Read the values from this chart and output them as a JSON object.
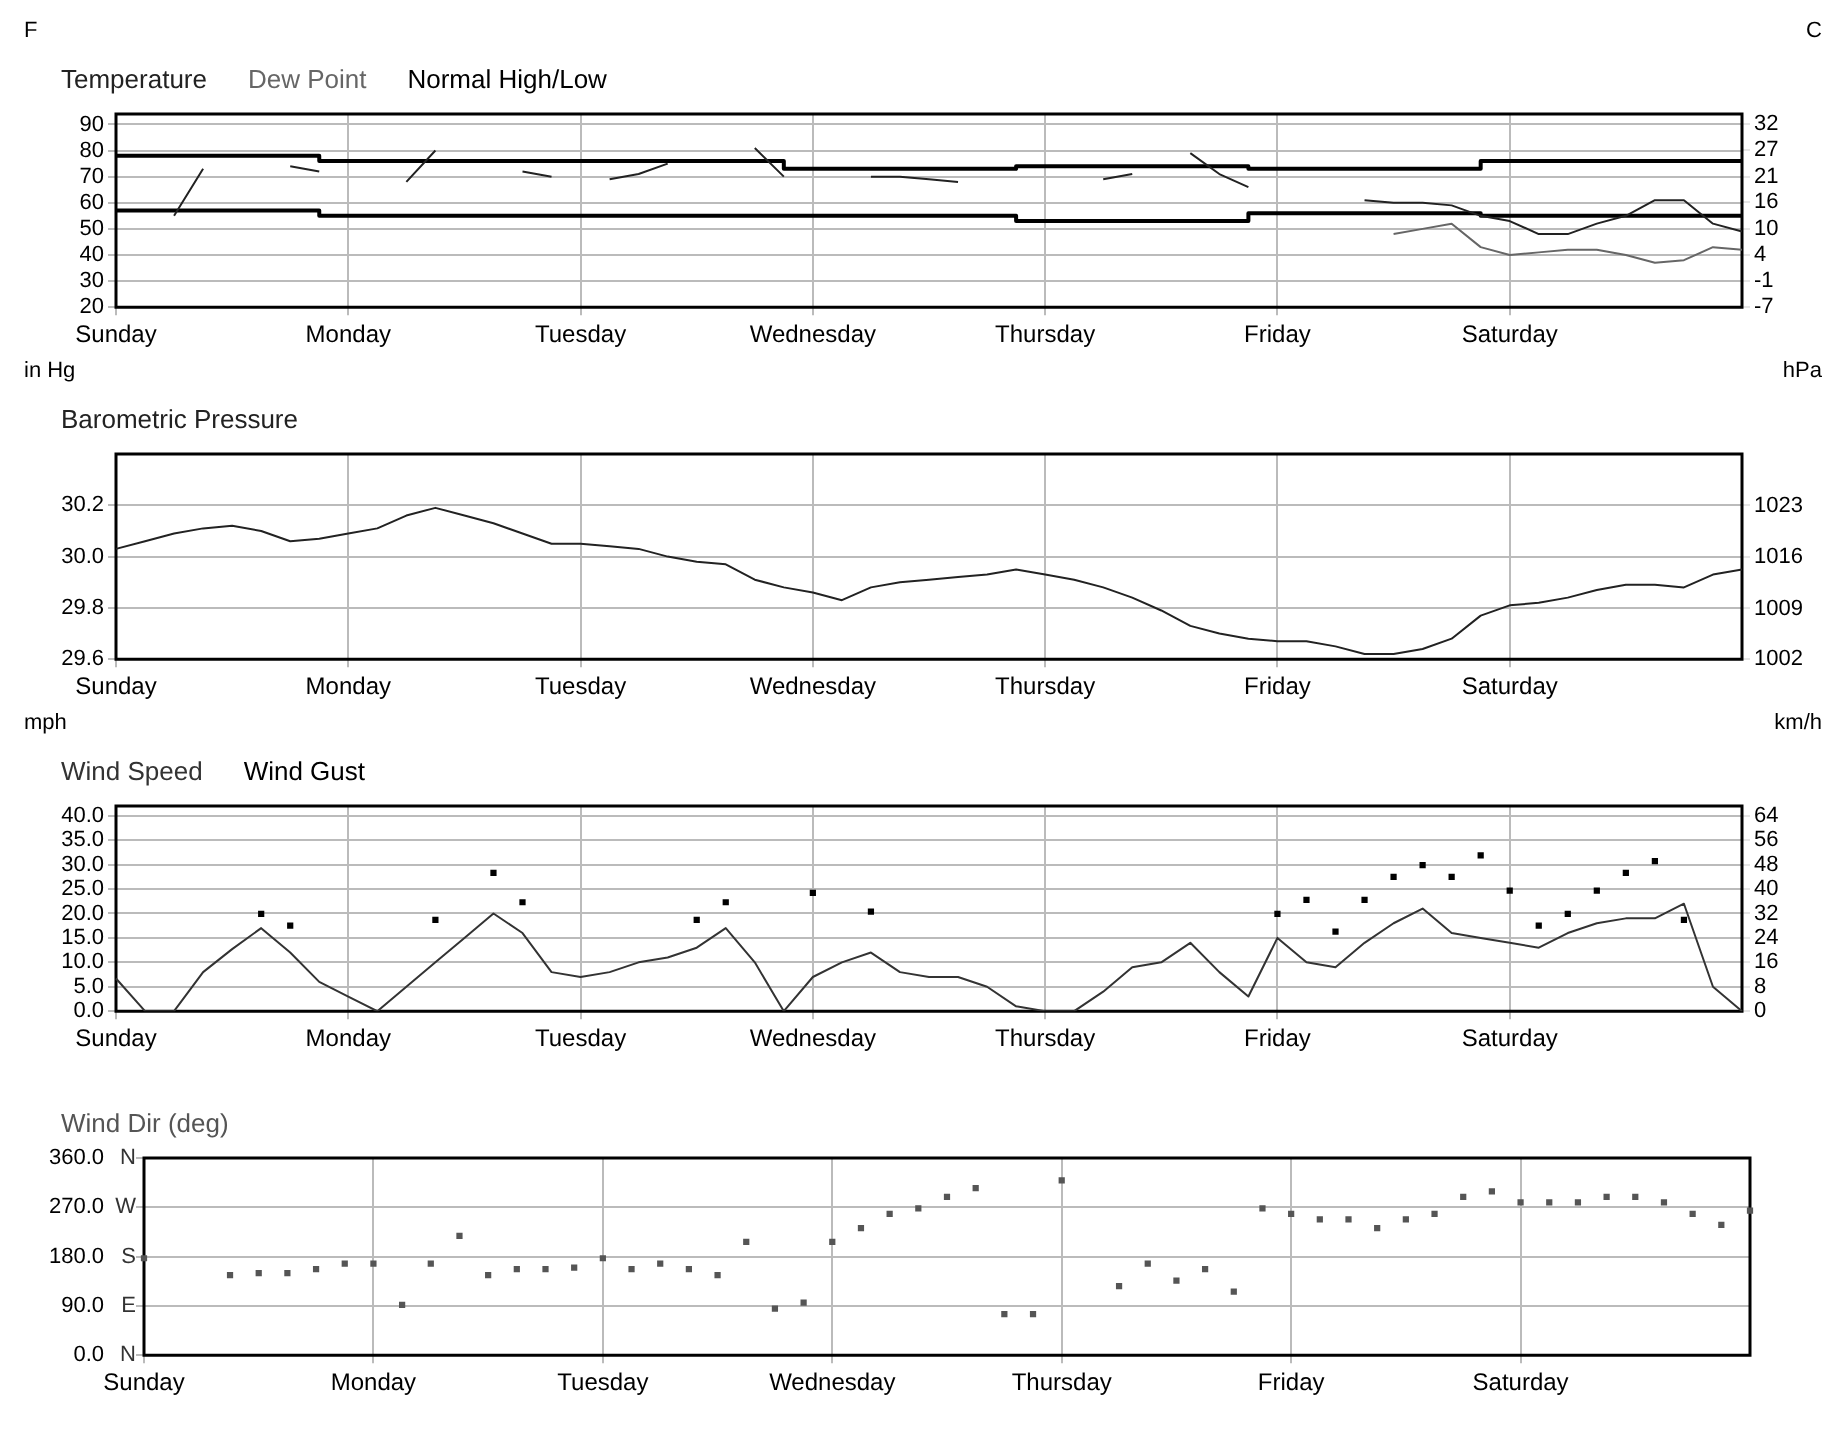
{
  "chart_data": [
    {
      "type": "line",
      "ylabel": "F",
      "y2label": "C",
      "categories": [
        "Sunday",
        null,
        null,
        null,
        null,
        null,
        null,
        null,
        "Monday",
        null,
        null,
        null,
        null,
        null,
        null,
        null,
        "Tuesday",
        null,
        null,
        null,
        null,
        null,
        null,
        null,
        "Wednesday",
        null,
        null,
        null,
        null,
        null,
        null,
        null,
        "Thursday",
        null,
        null,
        null,
        null,
        null,
        null,
        null,
        "Friday",
        null,
        null,
        null,
        null,
        null,
        null,
        null,
        "Saturday",
        null,
        null,
        null,
        null,
        null,
        null,
        null,
        null
      ],
      "ylim": [
        20,
        94
      ],
      "yticks": [
        20,
        30,
        40,
        50,
        60,
        70,
        80,
        90
      ],
      "y2lim": [
        -6.7,
        34.4
      ],
      "y2ticks": [
        {
          "value": -6.7,
          "label": "-7"
        },
        {
          "value": -1.1,
          "label": "-1"
        },
        {
          "value": 4.4,
          "label": "4"
        },
        10,
        {
          "value": 15.6,
          "label": "16"
        },
        {
          "value": 21.1,
          "label": "21"
        },
        {
          "value": 26.7,
          "label": "27"
        },
        {
          "value": 32.2,
          "label": "32"
        }
      ],
      "grid": true,
      "legend": "top left",
      "series": [
        {
          "name": "Temperature",
          "color": "#222222",
          "values": [
            null,
            null,
            55,
            73,
            null,
            null,
            74,
            72,
            null,
            null,
            68,
            80,
            null,
            null,
            72,
            70,
            null,
            69,
            71,
            75,
            null,
            null,
            81,
            70,
            null,
            null,
            70,
            70,
            69,
            68,
            null,
            null,
            null,
            null,
            69,
            71,
            null,
            79,
            71,
            66,
            null,
            null,
            null,
            61,
            60,
            60,
            59,
            55,
            53,
            48,
            48,
            52,
            55,
            61,
            61,
            52,
            49
          ]
        },
        {
          "name": "Dew Point",
          "color": "#666666",
          "values": [
            null,
            null,
            null,
            null,
            null,
            null,
            null,
            null,
            null,
            null,
            null,
            null,
            null,
            null,
            null,
            null,
            null,
            null,
            null,
            null,
            null,
            null,
            null,
            null,
            null,
            null,
            null,
            null,
            null,
            null,
            null,
            null,
            null,
            null,
            null,
            null,
            null,
            null,
            null,
            null,
            null,
            null,
            null,
            null,
            48,
            50,
            52,
            43,
            40,
            41,
            42,
            42,
            40,
            37,
            38,
            43,
            42
          ]
        },
        {
          "name": "Normal High/Low",
          "type": "step",
          "color": "#000000",
          "values": [
            78,
            78,
            78,
            78,
            78,
            78,
            78,
            78,
            76,
            76,
            76,
            76,
            76,
            76,
            76,
            76,
            76,
            76,
            76,
            76,
            76,
            76,
            76,
            76,
            73,
            73,
            73,
            73,
            73,
            73,
            73,
            73,
            74,
            74,
            74,
            74,
            74,
            74,
            74,
            74,
            73,
            73,
            73,
            73,
            73,
            73,
            73,
            73,
            76,
            76,
            76,
            76,
            76,
            76,
            76,
            76,
            76
          ]
        },
        {
          "type": "step",
          "color": "#000000",
          "values": [
            57,
            57,
            57,
            57,
            57,
            57,
            57,
            57,
            55,
            55,
            55,
            55,
            55,
            55,
            55,
            55,
            55,
            55,
            55,
            55,
            55,
            55,
            55,
            55,
            55,
            55,
            55,
            55,
            55,
            55,
            55,
            55,
            53,
            53,
            53,
            53,
            53,
            53,
            53,
            53,
            56,
            56,
            56,
            56,
            56,
            56,
            56,
            56,
            55,
            55,
            55,
            55,
            55,
            55,
            55,
            55,
            55
          ]
        }
      ]
    },
    {
      "type": "line",
      "ylabel": "in Hg",
      "y2label": "hPa",
      "categories": [
        "Sunday",
        null,
        null,
        null,
        null,
        null,
        null,
        null,
        "Monday",
        null,
        null,
        null,
        null,
        null,
        null,
        null,
        "Tuesday",
        null,
        null,
        null,
        null,
        null,
        null,
        null,
        "Wednesday",
        null,
        null,
        null,
        null,
        null,
        null,
        null,
        "Thursday",
        null,
        null,
        null,
        null,
        null,
        null,
        null,
        "Friday",
        null,
        null,
        null,
        null,
        null,
        null,
        null,
        "Saturday",
        null,
        null,
        null,
        null,
        null,
        null,
        null,
        null
      ],
      "ylim": [
        29.6,
        30.4
      ],
      "yticks": [
        29.6,
        29.8,
        {
          "value": 30.0,
          "label": "30.0"
        },
        30.2
      ],
      "y2lim": [
        1002.4,
        1029.5
      ],
      "y2ticks": [
        {
          "value": 1002.4,
          "label": "1002"
        },
        {
          "value": 1009.1,
          "label": "1009"
        },
        {
          "value": 1015.9,
          "label": "1016"
        },
        {
          "value": 1022.7,
          "label": "1023"
        }
      ],
      "grid": true,
      "legend": "top left",
      "series": [
        {
          "name": "Barometric Pressure",
          "color": "#222222",
          "values": [
            30.03,
            30.06,
            30.09,
            30.11,
            30.12,
            30.1,
            30.06,
            30.07,
            30.09,
            30.11,
            30.16,
            30.19,
            30.16,
            30.13,
            30.09,
            30.05,
            30.05,
            30.04,
            30.03,
            30.0,
            29.98,
            29.97,
            29.91,
            29.88,
            29.86,
            29.83,
            29.88,
            29.9,
            29.91,
            29.92,
            29.93,
            29.95,
            29.93,
            29.91,
            29.88,
            29.84,
            29.79,
            29.73,
            29.7,
            29.68,
            29.67,
            29.67,
            29.65,
            29.62,
            29.62,
            29.64,
            29.68,
            29.77,
            29.81,
            29.82,
            29.84,
            29.87,
            29.89,
            29.89,
            29.88,
            29.93,
            29.95
          ]
        }
      ]
    },
    {
      "type": "line",
      "ylabel": "mph",
      "y2label": "km/h",
      "categories": [
        "Sunday",
        null,
        null,
        null,
        null,
        null,
        null,
        null,
        "Monday",
        null,
        null,
        null,
        null,
        null,
        null,
        null,
        "Tuesday",
        null,
        null,
        null,
        null,
        null,
        null,
        null,
        "Wednesday",
        null,
        null,
        null,
        null,
        null,
        null,
        null,
        "Thursday",
        null,
        null,
        null,
        null,
        null,
        null,
        null,
        "Friday",
        null,
        null,
        null,
        null,
        null,
        null,
        null,
        "Saturday",
        null,
        null,
        null,
        null,
        null,
        null,
        null,
        null
      ],
      "ylim": [
        0,
        42
      ],
      "yticks": [
        {
          "value": 0,
          "label": "0.0"
        },
        {
          "value": 5,
          "label": "5.0"
        },
        {
          "value": 10,
          "label": "10.0"
        },
        {
          "value": 15,
          "label": "15.0"
        },
        {
          "value": 20,
          "label": "20.0"
        },
        {
          "value": 25,
          "label": "25.0"
        },
        {
          "value": 30,
          "label": "30.0"
        },
        {
          "value": 35,
          "label": "35.0"
        },
        {
          "value": 40,
          "label": "40.0"
        }
      ],
      "y2lim": [
        0,
        67.6
      ],
      "y2ticks": [
        0,
        {
          "value": 8.05,
          "label": "8"
        },
        {
          "value": 16.09,
          "label": "16"
        },
        {
          "value": 24.14,
          "label": "24"
        },
        {
          "value": 32.19,
          "label": "32"
        },
        {
          "value": 40.23,
          "label": "40"
        },
        {
          "value": 48.28,
          "label": "48"
        },
        {
          "value": 56.33,
          "label": "56"
        },
        {
          "value": 64.37,
          "label": "64"
        }
      ],
      "grid": true,
      "legend": "top left",
      "series": [
        {
          "name": "Wind Speed",
          "color": "#333333",
          "values": [
            6.7,
            0,
            0,
            8,
            12.7,
            17,
            12,
            6,
            3,
            0,
            5,
            10,
            15,
            20,
            16,
            8,
            7,
            8,
            10,
            11,
            13,
            17,
            10,
            0,
            7,
            10,
            12,
            8,
            7,
            7,
            5,
            1,
            0,
            0,
            4,
            9,
            10,
            14,
            8,
            3,
            15,
            10,
            9,
            14,
            18,
            21,
            16,
            15,
            14,
            13,
            16,
            18,
            19,
            19,
            22,
            5,
            0
          ]
        },
        {
          "name": "Wind Gust",
          "type": "scatter",
          "marker": "square",
          "color": "#000000",
          "values": [
            null,
            null,
            null,
            null,
            null,
            19.9,
            17.5,
            null,
            null,
            null,
            null,
            18.7,
            null,
            28.3,
            22.3,
            null,
            null,
            null,
            null,
            null,
            18.7,
            22.3,
            null,
            null,
            24.2,
            null,
            20.4,
            null,
            null,
            null,
            null,
            null,
            null,
            null,
            null,
            null,
            null,
            null,
            null,
            null,
            19.9,
            22.8,
            16.3,
            22.8,
            27.5,
            29.9,
            27.5,
            31.9,
            24.7,
            17.5,
            19.9,
            24.7,
            28.3,
            30.7,
            18.7,
            null,
            null
          ]
        }
      ]
    },
    {
      "type": "scatter",
      "marker": "square",
      "categories": [
        "Sunday",
        null,
        null,
        null,
        null,
        null,
        null,
        null,
        "Monday",
        null,
        null,
        null,
        null,
        null,
        null,
        null,
        "Tuesday",
        null,
        null,
        null,
        null,
        null,
        null,
        null,
        "Wednesday",
        null,
        null,
        null,
        null,
        null,
        null,
        null,
        "Thursday",
        null,
        null,
        null,
        null,
        null,
        null,
        null,
        "Friday",
        null,
        null,
        null,
        null,
        null,
        null,
        null,
        "Saturday",
        null,
        null,
        null,
        null,
        null,
        null,
        null,
        null
      ],
      "ylim": [
        0,
        360
      ],
      "yticks": [
        {
          "value": 0,
          "label": "0.0"
        },
        {
          "value": 90,
          "label": "90.0"
        },
        {
          "value": 180,
          "label": "180.0"
        },
        {
          "value": 270,
          "label": "270.0"
        },
        {
          "value": 360,
          "label": "360.0"
        }
      ],
      "grid": true,
      "legend": "top left",
      "annotations": [
        "N",
        "E",
        "S",
        "W",
        "N"
      ],
      "series": [
        {
          "name": "Wind Dir (deg)",
          "color": "#555555",
          "values": [
            177,
            null,
            null,
            146,
            150,
            150,
            157,
            167,
            167,
            92,
            167,
            218,
            146,
            157,
            157,
            160,
            177,
            157,
            167,
            157,
            146,
            207,
            85,
            96,
            207,
            232,
            258,
            268,
            289,
            305,
            75,
            75,
            319,
            null,
            126,
            167,
            136,
            157,
            116,
            268,
            258,
            248,
            248,
            232,
            248,
            258,
            289,
            299,
            279,
            279,
            279,
            289,
            289,
            279,
            258,
            238,
            264
          ]
        }
      ]
    }
  ]
}
